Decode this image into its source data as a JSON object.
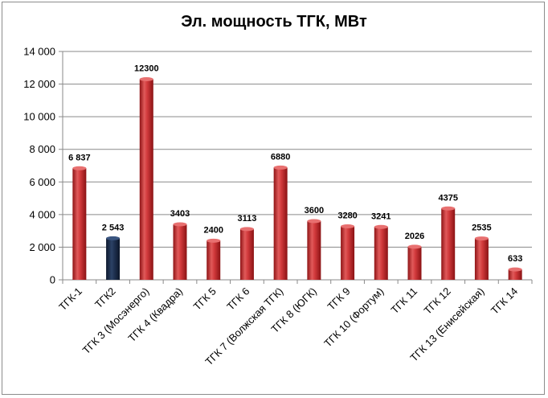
{
  "chart_data": {
    "type": "bar",
    "title": "Эл. мощность ТГК, МВт",
    "xlabel": "",
    "ylabel": "",
    "ylim": [
      0,
      14000
    ],
    "y_ticks": [
      0,
      2000,
      4000,
      6000,
      8000,
      10000,
      12000,
      14000
    ],
    "y_tick_labels": [
      "0",
      "2 000",
      "4 000",
      "6 000",
      "8 000",
      "10 000",
      "12 000",
      "14 000"
    ],
    "grid": true,
    "legend": "none",
    "categories": [
      "ТГК-1",
      "ТГК2",
      "ТГК 3 (Мосэнерго)",
      "ТГК 4 (Квадра)",
      "ТГК 5",
      "ТГК 6",
      "ТГК 7 (Волжская ТГК)",
      "ТГК 8 (ЮГК)",
      "ТГК 9",
      "ТГК 10 (Фортум)",
      "ТГК 11",
      "ТГК 12",
      "ТГК 13 (Енисейская)",
      "ТГК 14"
    ],
    "values": [
      6837,
      2543,
      12300,
      3403,
      2400,
      3113,
      6880,
      3600,
      3280,
      3241,
      2026,
      4375,
      2535,
      633
    ],
    "data_labels": [
      "6 837",
      "2 543",
      "12300",
      "3403",
      "2400",
      "3113",
      "6880",
      "3600",
      "3280",
      "3241",
      "2026",
      "4375",
      "2535",
      "633"
    ],
    "colors": {
      "default": "#c0282a",
      "highlight": "#1a2b45",
      "highlight_index": 1,
      "grid": "#8a8a8a"
    }
  }
}
